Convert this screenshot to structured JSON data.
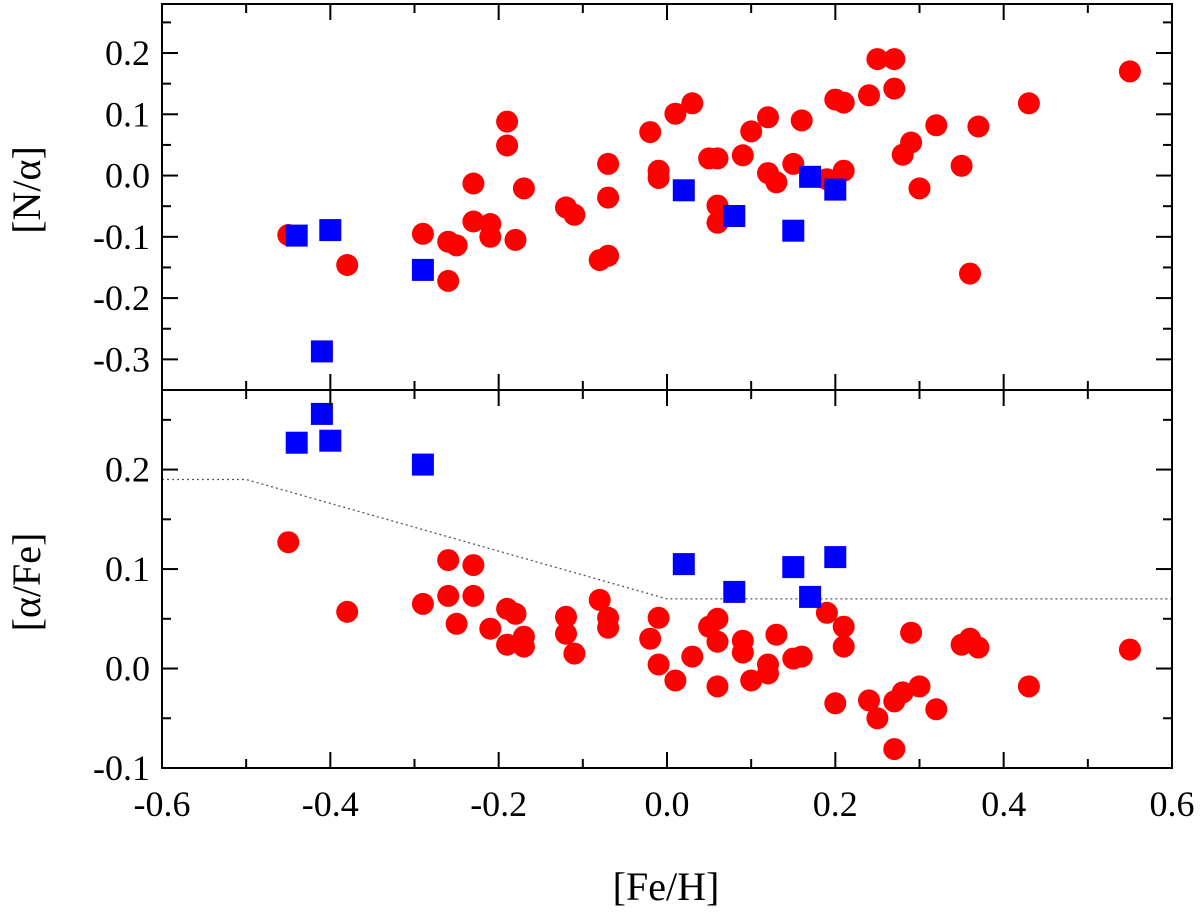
{
  "chart_data": {
    "type": "scatter",
    "xlabel": "[Fe/H]",
    "xlim": [
      -0.6,
      0.6
    ],
    "x_ticks": [
      -0.6,
      -0.4,
      -0.2,
      0.0,
      0.2,
      0.4,
      0.6
    ],
    "x_tick_labels": [
      "-0.6",
      "-0.4",
      "-0.2",
      "0.0",
      "0.2",
      "0.4",
      "0.6"
    ],
    "colors": {
      "circle": "#ff0000",
      "square": "#0000ff",
      "axes": "#000000",
      "guide": "#555555"
    },
    "panels": [
      {
        "id": "top",
        "ylabel": "[N/α]",
        "ylim": [
          -0.35,
          0.28
        ],
        "y_ticks": [
          -0.3,
          -0.2,
          -0.1,
          0.0,
          0.1,
          0.2
        ],
        "y_tick_labels": [
          "-0.3",
          "-0.2",
          "-0.1",
          "0.0",
          "0.1",
          "0.2"
        ],
        "series": [
          {
            "name": "circles",
            "marker": "circle",
            "points": [
              [
                -0.45,
                -0.097
              ],
              [
                -0.38,
                -0.146
              ],
              [
                -0.29,
                -0.095
              ],
              [
                -0.26,
                -0.108
              ],
              [
                -0.26,
                -0.172
              ],
              [
                -0.25,
                -0.114
              ],
              [
                -0.23,
                -0.013
              ],
              [
                -0.23,
                -0.075
              ],
              [
                -0.21,
                -0.079
              ],
              [
                -0.21,
                -0.1
              ],
              [
                -0.19,
                0.088
              ],
              [
                -0.19,
                0.049
              ],
              [
                -0.18,
                -0.105
              ],
              [
                -0.17,
                -0.021
              ],
              [
                -0.12,
                -0.052
              ],
              [
                -0.11,
                -0.064
              ],
              [
                -0.08,
                -0.138
              ],
              [
                -0.07,
                -0.131
              ],
              [
                -0.07,
                0.019
              ],
              [
                -0.07,
                -0.036
              ],
              [
                -0.02,
                0.071
              ],
              [
                -0.01,
                0.008
              ],
              [
                -0.01,
                -0.004
              ],
              [
                0.01,
                0.101
              ],
              [
                0.03,
                0.118
              ],
              [
                0.05,
                0.028
              ],
              [
                0.06,
                0.028
              ],
              [
                0.06,
                -0.049
              ],
              [
                0.06,
                -0.077
              ],
              [
                0.09,
                0.033
              ],
              [
                0.1,
                0.072
              ],
              [
                0.12,
                0.095
              ],
              [
                0.12,
                0.004
              ],
              [
                0.13,
                -0.011
              ],
              [
                0.15,
                0.019
              ],
              [
                0.16,
                0.09
              ],
              [
                0.19,
                -0.006
              ],
              [
                0.2,
                0.124
              ],
              [
                0.21,
                0.119
              ],
              [
                0.21,
                0.008
              ],
              [
                0.24,
                0.131
              ],
              [
                0.25,
                0.19
              ],
              [
                0.27,
                0.19
              ],
              [
                0.27,
                0.142
              ],
              [
                0.28,
                0.034
              ],
              [
                0.29,
                0.054
              ],
              [
                0.3,
                -0.021
              ],
              [
                0.32,
                0.082
              ],
              [
                0.35,
                0.016
              ],
              [
                0.36,
                -0.16
              ],
              [
                0.37,
                0.08
              ],
              [
                0.43,
                0.118
              ],
              [
                0.55,
                0.17
              ]
            ]
          },
          {
            "name": "squares",
            "marker": "square",
            "points": [
              [
                -0.44,
                -0.098
              ],
              [
                -0.41,
                -0.287
              ],
              [
                -0.4,
                -0.089
              ],
              [
                -0.29,
                -0.154
              ],
              [
                0.02,
                -0.024
              ],
              [
                0.08,
                -0.066
              ],
              [
                0.15,
                -0.09
              ],
              [
                0.17,
                -0.002
              ],
              [
                0.2,
                -0.023
              ]
            ]
          }
        ]
      },
      {
        "id": "bottom",
        "ylabel": "[α/Fe]",
        "ylim": [
          -0.1,
          0.28
        ],
        "y_ticks": [
          -0.1,
          0.0,
          0.1,
          0.2
        ],
        "y_tick_labels": [
          "-0.1",
          "0.0",
          "0.1",
          "0.2"
        ],
        "guide_line": [
          [
            -0.6,
            0.19
          ],
          [
            -0.5,
            0.19
          ],
          [
            0.0,
            0.07
          ],
          [
            0.6,
            0.07
          ]
        ],
        "series": [
          {
            "name": "circles",
            "marker": "circle",
            "points": [
              [
                -0.45,
                0.127
              ],
              [
                -0.38,
                0.057
              ],
              [
                -0.29,
                0.065
              ],
              [
                -0.26,
                0.109
              ],
              [
                -0.26,
                0.073
              ],
              [
                -0.25,
                0.045
              ],
              [
                -0.23,
                0.104
              ],
              [
                -0.23,
                0.073
              ],
              [
                -0.21,
                0.04
              ],
              [
                -0.19,
                0.06
              ],
              [
                -0.19,
                0.024
              ],
              [
                -0.18,
                0.055
              ],
              [
                -0.17,
                0.032
              ],
              [
                -0.17,
                0.022
              ],
              [
                -0.12,
                0.052
              ],
              [
                -0.12,
                0.035
              ],
              [
                -0.11,
                0.015
              ],
              [
                -0.08,
                0.069
              ],
              [
                -0.07,
                0.051
              ],
              [
                -0.07,
                0.041
              ],
              [
                -0.02,
                0.03
              ],
              [
                -0.01,
                0.051
              ],
              [
                -0.01,
                0.004
              ],
              [
                0.01,
                -0.012
              ],
              [
                0.03,
                0.012
              ],
              [
                0.05,
                0.042
              ],
              [
                0.06,
                0.05
              ],
              [
                0.06,
                0.027
              ],
              [
                0.06,
                -0.018
              ],
              [
                0.09,
                0.028
              ],
              [
                0.09,
                0.016
              ],
              [
                0.1,
                -0.012
              ],
              [
                0.12,
                0.004
              ],
              [
                0.12,
                -0.005
              ],
              [
                0.13,
                0.034
              ],
              [
                0.15,
                0.01
              ],
              [
                0.16,
                0.012
              ],
              [
                0.19,
                0.056
              ],
              [
                0.2,
                -0.035
              ],
              [
                0.21,
                0.042
              ],
              [
                0.21,
                0.022
              ],
              [
                0.24,
                -0.032
              ],
              [
                0.25,
                -0.05
              ],
              [
                0.27,
                -0.033
              ],
              [
                0.27,
                -0.081
              ],
              [
                0.28,
                -0.024
              ],
              [
                0.29,
                0.036
              ],
              [
                0.3,
                -0.018
              ],
              [
                0.32,
                -0.041
              ],
              [
                0.35,
                0.024
              ],
              [
                0.36,
                0.03
              ],
              [
                0.37,
                0.021
              ],
              [
                0.43,
                -0.018
              ],
              [
                0.55,
                0.019
              ]
            ]
          },
          {
            "name": "squares",
            "marker": "square",
            "points": [
              [
                -0.44,
                0.227
              ],
              [
                -0.41,
                0.256
              ],
              [
                -0.4,
                0.229
              ],
              [
                -0.29,
                0.205
              ],
              [
                0.02,
                0.105
              ],
              [
                0.08,
                0.077
              ],
              [
                0.15,
                0.102
              ],
              [
                0.17,
                0.072
              ],
              [
                0.2,
                0.112
              ]
            ]
          }
        ]
      }
    ]
  }
}
